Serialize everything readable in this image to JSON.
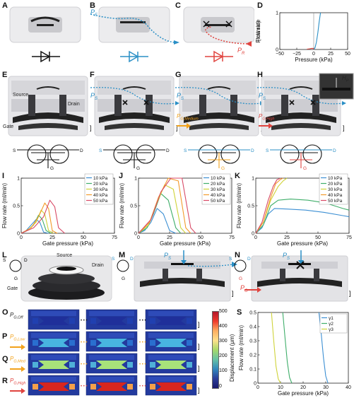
{
  "panels": {
    "A": "A",
    "B": "B",
    "C": "C",
    "D": "D",
    "E": "E",
    "F": "F",
    "G": "G",
    "H": "H",
    "I": "I",
    "J": "J",
    "K": "K",
    "L": "L",
    "M": "M",
    "N": "N",
    "O": "O",
    "P": "P",
    "Q": "Q",
    "R": "R",
    "S": "S"
  },
  "labels": {
    "pf": "P",
    "pf_sub": "F",
    "pr": "P",
    "pr_sub": "R",
    "source": "Source",
    "drain": "Drain",
    "gate": "Gate",
    "ps": "P",
    "ps_sub": "S",
    "pg_medium": "P",
    "pg_medium_sub": "G,Medium",
    "pg_high": "P",
    "pg_high_sub": "G,High",
    "hp": "H",
    "hp_sub": "P",
    "s": "S",
    "d": "D",
    "g": "G",
    "pg": "P",
    "pg_sub": "G",
    "pg_off": "P",
    "pg_off_sub": "G,Off",
    "pg_low": "P",
    "pg_low_sub": "G,Low",
    "pg_med": "P",
    "pg_med_sub": "G,Med",
    "pg_high2": "P",
    "pg_high2_sub": "G,High",
    "displacement": "Displacement (μm)",
    "dots": "• • •",
    "bracket": "]"
  },
  "colors": {
    "blue": "#2a8fc6",
    "red": "#e0443f",
    "orange": "#f2a21b",
    "teal": "#3aa6a8",
    "c10": "#3c8fd3",
    "c20": "#3fae6a",
    "c30": "#cfd33a",
    "c40": "#f39a2a",
    "c50": "#d84a66"
  },
  "icons": [
    "diode-icon",
    "transistor-pair-icon",
    "blocked-x-icon",
    "arrow-icon"
  ],
  "colorbar": {
    "ticks": [
      "500",
      "400",
      "300",
      "200",
      "100",
      "0"
    ]
  },
  "chart_data": [
    {
      "id": "D",
      "type": "line",
      "xlabel": "Pressure (kPa)",
      "ylabel": "Flow rate\n(ml/min)",
      "xlim": [
        -50,
        50
      ],
      "ylim": [
        0,
        1
      ],
      "xticks": [
        "−50",
        "−25",
        "0",
        "25",
        "50"
      ],
      "yticks": [
        "0",
        "1"
      ],
      "series": [
        {
          "color": "#2a8fc6",
          "x": [
            0,
            2,
            4,
            6,
            8,
            10
          ],
          "y": [
            0,
            0.05,
            0.2,
            0.45,
            0.75,
            1.0
          ]
        },
        {
          "color": "#e0443f",
          "x": [
            -10,
            -6,
            -3,
            -1,
            0
          ],
          "y": [
            0.01,
            0.02,
            0.03,
            0.03,
            0.0
          ]
        }
      ]
    },
    {
      "id": "I",
      "type": "line",
      "xlabel": "Gate pressure (kPa)",
      "ylabel": "Flow rate (ml/min)",
      "xlim": [
        0,
        75
      ],
      "ylim": [
        0,
        1
      ],
      "xticks": [
        "0",
        "25",
        "50",
        "75"
      ],
      "yticks": [
        "0",
        "0.5",
        "1"
      ],
      "series": [
        {
          "name": "10 kPa",
          "color": "#3c8fd3",
          "x": [
            0,
            4,
            8,
            12,
            15,
            18,
            22
          ],
          "y": [
            0,
            0.05,
            0.15,
            0.25,
            0.2,
            0.02,
            0
          ]
        },
        {
          "name": "20 kPa",
          "color": "#3fae6a",
          "x": [
            0,
            5,
            10,
            14,
            17,
            20,
            24
          ],
          "y": [
            0,
            0.05,
            0.15,
            0.33,
            0.25,
            0.05,
            0
          ]
        },
        {
          "name": "30 kPa",
          "color": "#cfd33a",
          "x": [
            0,
            6,
            12,
            16,
            19,
            22,
            26
          ],
          "y": [
            0,
            0.07,
            0.2,
            0.42,
            0.35,
            0.05,
            0
          ]
        },
        {
          "name": "40 kPa",
          "color": "#f39a2a",
          "x": [
            0,
            8,
            14,
            19,
            22,
            25,
            29
          ],
          "y": [
            0,
            0.1,
            0.3,
            0.55,
            0.45,
            0.05,
            0
          ]
        },
        {
          "name": "50 kPa",
          "color": "#d84a66",
          "x": [
            0,
            10,
            18,
            23,
            27,
            30,
            35
          ],
          "y": [
            0,
            0.1,
            0.3,
            0.6,
            0.48,
            0.1,
            0
          ]
        }
      ]
    },
    {
      "id": "J",
      "type": "line",
      "xlabel": "Gate pressure (kPa)",
      "ylabel": "Flow rate (ml/min)",
      "xlim": [
        0,
        75
      ],
      "ylim": [
        0,
        1
      ],
      "xticks": [
        "0",
        "25",
        "50",
        "75"
      ],
      "yticks": [
        "0",
        "0.5",
        "1"
      ],
      "series": [
        {
          "name": "10 kPa",
          "color": "#3c8fd3",
          "x": [
            0,
            5,
            10,
            15,
            20,
            25,
            30
          ],
          "y": [
            0,
            0.05,
            0.2,
            0.45,
            0.35,
            0.05,
            0
          ]
        },
        {
          "name": "20 kPa",
          "color": "#3fae6a",
          "x": [
            0,
            7,
            12,
            18,
            24,
            30,
            34
          ],
          "y": [
            0,
            0.1,
            0.35,
            0.72,
            0.6,
            0.1,
            0
          ]
        },
        {
          "name": "30 kPa",
          "color": "#cfd33a",
          "x": [
            0,
            8,
            14,
            21,
            28,
            34,
            38
          ],
          "y": [
            0,
            0.15,
            0.5,
            0.88,
            0.8,
            0.1,
            0
          ]
        },
        {
          "name": "40 kPa",
          "color": "#f39a2a",
          "x": [
            0,
            9,
            16,
            24,
            32,
            38,
            42
          ],
          "y": [
            0,
            0.2,
            0.65,
            1.0,
            0.95,
            0.1,
            0
          ]
        },
        {
          "name": "50 kPa",
          "color": "#d84a66",
          "x": [
            0,
            10,
            18,
            26,
            35,
            42,
            46
          ],
          "y": [
            0,
            0.25,
            0.75,
            1.0,
            1.0,
            0.1,
            0
          ]
        }
      ]
    },
    {
      "id": "K",
      "type": "line",
      "xlabel": "Gate pressure (kPa)",
      "ylabel": "Flow rate (ml/min)",
      "xlim": [
        0,
        75
      ],
      "ylim": [
        0,
        1
      ],
      "xticks": [
        "0",
        "25",
        "50",
        "75"
      ],
      "yticks": [
        "0",
        "0.5",
        "1"
      ],
      "series": [
        {
          "name": "10 kPa",
          "color": "#3c8fd3",
          "x": [
            0,
            5,
            10,
            15,
            25,
            40,
            55,
            70,
            75
          ],
          "y": [
            0,
            0.1,
            0.35,
            0.45,
            0.44,
            0.42,
            0.38,
            0.32,
            0.3
          ]
        },
        {
          "name": "20 kPa",
          "color": "#3fae6a",
          "x": [
            0,
            6,
            12,
            18,
            28,
            42,
            56,
            70,
            75
          ],
          "y": [
            0,
            0.15,
            0.5,
            0.6,
            0.62,
            0.6,
            0.55,
            0.45,
            0.42
          ]
        },
        {
          "name": "30 kPa",
          "color": "#cfd33a",
          "x": [
            0,
            6,
            12,
            18,
            22,
            25
          ],
          "y": [
            0,
            0.2,
            0.6,
            0.85,
            0.95,
            1.0
          ]
        },
        {
          "name": "40 kPa",
          "color": "#f39a2a",
          "x": [
            0,
            6,
            12,
            16,
            20,
            22
          ],
          "y": [
            0,
            0.2,
            0.65,
            0.9,
            0.98,
            1.0
          ]
        },
        {
          "name": "50 kPa",
          "color": "#d84a66",
          "x": [
            0,
            5,
            10,
            14,
            17,
            20
          ],
          "y": [
            0,
            0.2,
            0.6,
            0.85,
            0.97,
            1.0
          ]
        }
      ]
    },
    {
      "id": "S",
      "type": "line",
      "xlabel": "Gate pressure (kPa)",
      "ylabel": "Flow rate (ml/min)",
      "xlim": [
        0,
        40
      ],
      "ylim": [
        0,
        0.5
      ],
      "xticks": [
        "0",
        "10",
        "20",
        "30",
        "40"
      ],
      "yticks": [
        "0",
        "0.1",
        "0.2",
        "0.3",
        "0.4",
        "0.5"
      ],
      "series": [
        {
          "name": "γ1",
          "color": "#3c8fd3",
          "x": [
            27,
            28,
            29,
            30,
            31
          ],
          "y": [
            0.5,
            0.35,
            0.18,
            0.05,
            0
          ]
        },
        {
          "name": "γ2",
          "color": "#3fae6a",
          "x": [
            11,
            12,
            13,
            14,
            15
          ],
          "y": [
            0.5,
            0.32,
            0.15,
            0.04,
            0
          ]
        },
        {
          "name": "γ3",
          "color": "#cfd33a",
          "x": [
            6,
            7,
            8,
            9,
            10
          ],
          "y": [
            0.5,
            0.3,
            0.12,
            0.03,
            0
          ]
        }
      ]
    }
  ]
}
